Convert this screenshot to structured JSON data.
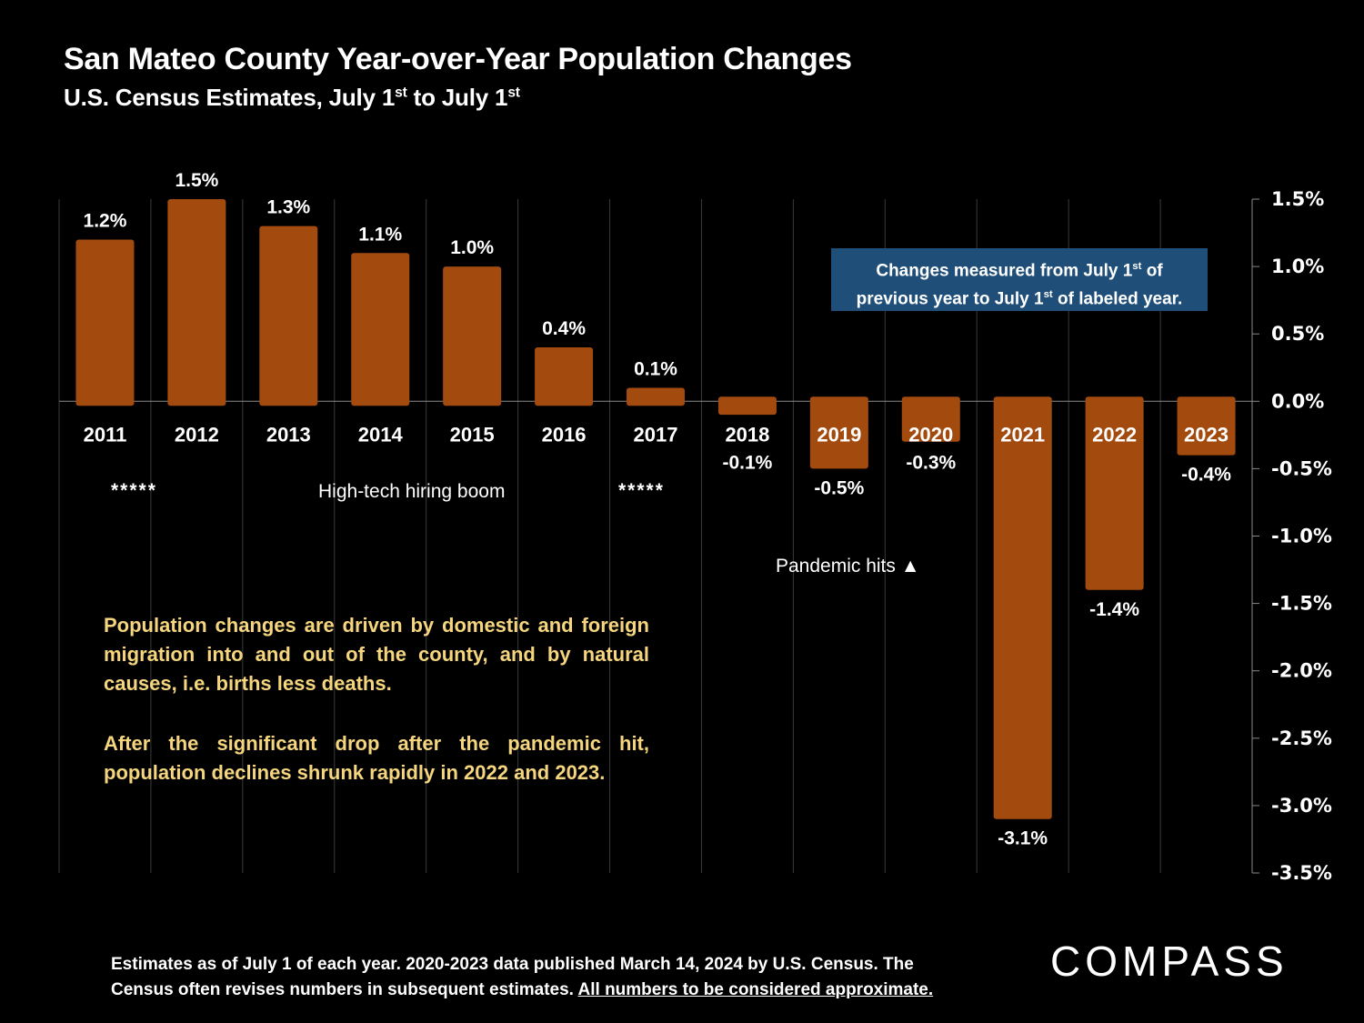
{
  "header": {
    "title": "San Mateo County Year-over-Year Population Changes",
    "subtitle_prefix": "U.S. Census Estimates, July 1",
    "subtitle_sup1": "st",
    "subtitle_mid": " to July 1",
    "subtitle_sup2": "st"
  },
  "note_box": {
    "line1_a": "Changes measured from July 1",
    "line1_sup": "st",
    "line1_b": " of",
    "line2_a": "previous year to July 1",
    "line2_sup": "st",
    "line2_b": " of labeled year."
  },
  "annotations": {
    "stars_left": "*****",
    "boom": "High-tech hiring boom",
    "stars_right": "*****",
    "pandemic": "Pandemic hits ▲"
  },
  "paragraphs": {
    "p1": "Population changes are driven by domestic and foreign migration into and out of the county, and by natural causes, i.e. births less deaths.",
    "p2": "After the significant drop after the pandemic hit, population declines shrunk rapidly in 2022 and 2023."
  },
  "footer": {
    "line1": "Estimates as of July 1 of each year. 2020-2023 data published March 14, 2024 by U.S. Census. The",
    "line2_plain": "Census often revises numbers in subsequent estimates. ",
    "line2_underlined": "All numbers to be considered approximate."
  },
  "logo": {
    "text": "COMPASS"
  },
  "colors": {
    "bar": "#a34a0e",
    "note_bg": "#1f4e79",
    "paragraph": "#f5d67e",
    "background": "#000000"
  },
  "chart_data": {
    "type": "bar",
    "title": "San Mateo County Year-over-Year Population Changes",
    "subtitle": "U.S. Census Estimates, July 1st to July 1st",
    "categories": [
      "2011",
      "2012",
      "2013",
      "2014",
      "2015",
      "2016",
      "2017",
      "2018",
      "2019",
      "2020",
      "2021",
      "2022",
      "2023"
    ],
    "values": [
      1.2,
      1.5,
      1.3,
      1.1,
      1.0,
      0.4,
      0.1,
      -0.1,
      -0.5,
      -0.3,
      -3.1,
      -1.4,
      -0.4
    ],
    "data_labels": [
      "1.2%",
      "1.5%",
      "1.3%",
      "1.1%",
      "1.0%",
      "0.4%",
      "0.1%",
      "-0.1%",
      "-0.5%",
      "-0.3%",
      "-3.1%",
      "-1.4%",
      "-0.4%"
    ],
    "xlabel": "",
    "ylabel": "",
    "ylim": [
      -3.5,
      1.5
    ],
    "yticks": [
      1.5,
      1.0,
      0.5,
      0.0,
      -0.5,
      -1.0,
      -1.5,
      -2.0,
      -2.5,
      -3.0,
      -3.5
    ],
    "ytick_labels": [
      "1.5%",
      "1.0%",
      "0.5%",
      "0.0%",
      "-0.5%",
      "-1.0%",
      "-1.5%",
      "-2.0%",
      "-2.5%",
      "-3.0%",
      "-3.5%"
    ],
    "y_axis_position": "right",
    "grid": "vertical category separators",
    "legend": "none"
  }
}
